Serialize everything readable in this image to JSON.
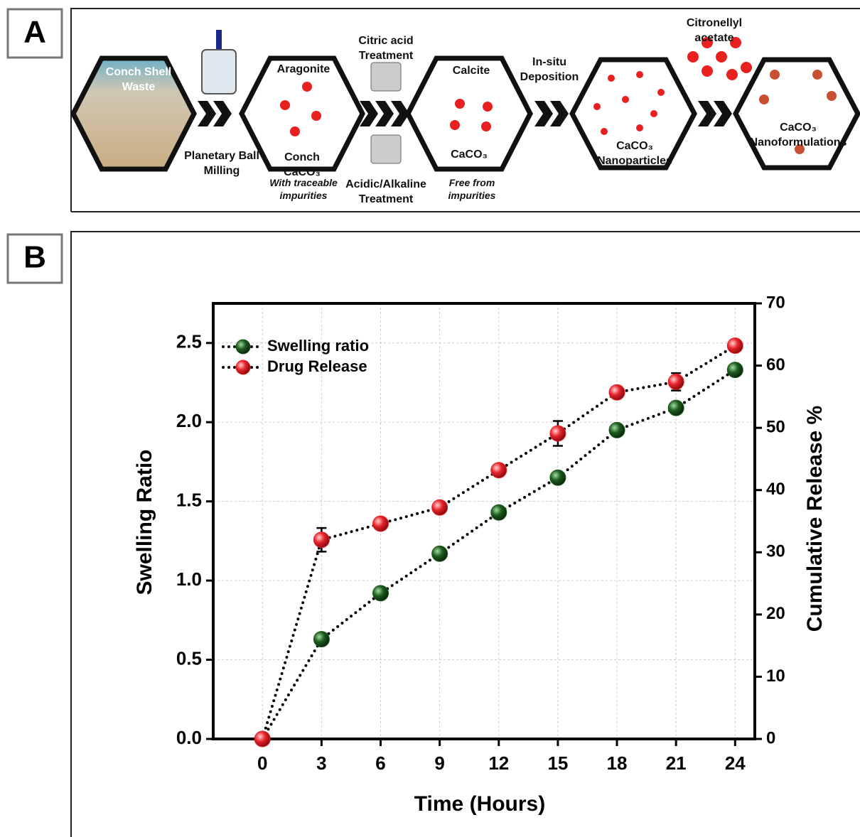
{
  "panel_a": {
    "label": "A",
    "conch_shell_waste": "Conch Shell Waste",
    "planetary_ball_milling": "Planetary Ball Milling",
    "aragonite": "Aragonite",
    "conch_caco3": "Conch CaCO₃",
    "with_traceable_impurities": "With traceable impurities",
    "citric_acid_treatment": "Citric acid Treatment",
    "acidic_alkaline_treatment": "Acidic/Alkaline Treatment",
    "calcite": "Calcite",
    "caco3": "CaCO₃",
    "free_from_impurities": "Free from impurities",
    "in_situ_deposition": "In-situ Deposition",
    "caco3_nanoparticles": "CaCO₃ Nanoparticles",
    "citronellyl_acetate": "Citronellyl acetate",
    "caco3_nanoformulations": "CaCO₃ Nanoformulations"
  },
  "panel_b_label": "B",
  "chart_data": {
    "type": "line",
    "xlabel": "Time (Hours)",
    "ylabel": "Swelling Ratio",
    "y2label": "Cumulative Release %",
    "x": [
      0,
      3,
      6,
      9,
      12,
      15,
      18,
      21,
      24
    ],
    "series": [
      {
        "name": "Swelling ratio",
        "color": "#1e5c1e",
        "values": [
          0,
          0.63,
          0.92,
          1.17,
          1.43,
          1.65,
          1.95,
          2.09,
          2.33
        ]
      },
      {
        "name": "Drug Release",
        "color": "#e8232b",
        "axis": "y2",
        "values": [
          0,
          32.0,
          34.6,
          37.2,
          43.2,
          49.1,
          55.7,
          57.4,
          63.2
        ],
        "errors": [
          0,
          1.9,
          0.7,
          0.8,
          0.5,
          2.0,
          0.5,
          1.4,
          0.5
        ]
      }
    ],
    "xlim": [
      -2.5,
      25
    ],
    "xticks": [
      0,
      3,
      6,
      9,
      12,
      15,
      18,
      21,
      24
    ],
    "ylim": [
      0,
      2.75
    ],
    "yticks": [
      {
        "value": 0,
        "label": "0.0"
      },
      0.5,
      {
        "value": 1,
        "label": "1.0"
      },
      1.5,
      {
        "value": 2,
        "label": "2.0"
      },
      2.5
    ],
    "y2lim": [
      0,
      70
    ],
    "y2ticks": [
      0,
      10,
      20,
      30,
      40,
      50,
      60,
      70
    ],
    "grid": true,
    "legend": "upper left"
  }
}
